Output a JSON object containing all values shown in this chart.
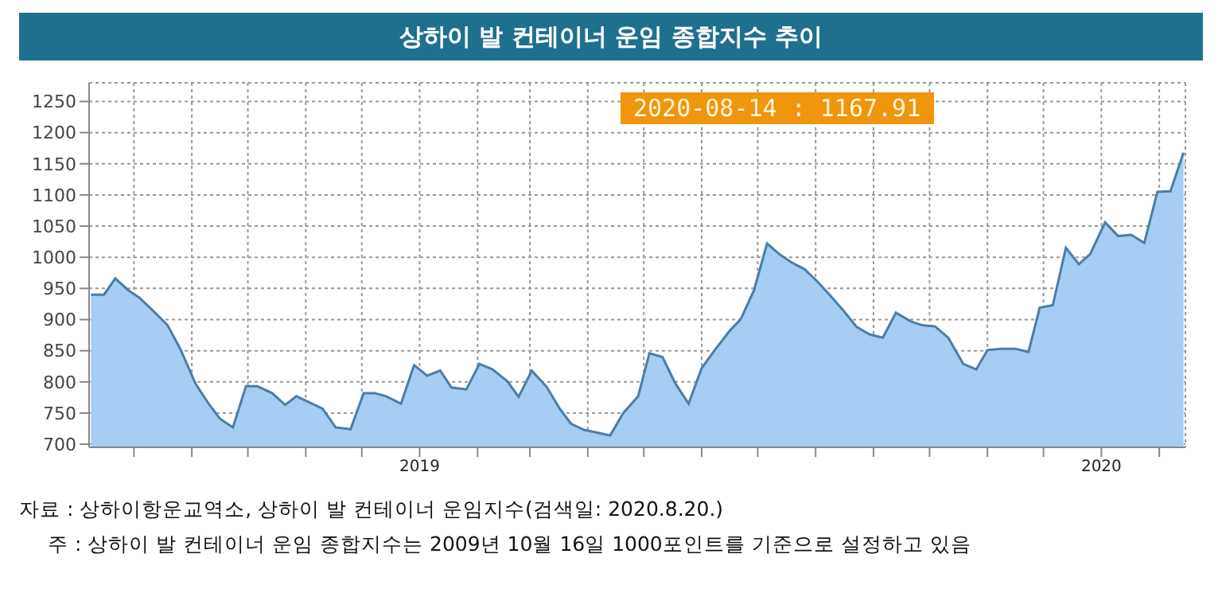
{
  "chart_data": {
    "type": "area",
    "title": "상하이 발 컨테이너 운임 종합지수 추이",
    "x": [
      "2018-07-09",
      "2018-07-16",
      "2018-07-22",
      "2018-07-29",
      "2018-08-04",
      "2018-08-12",
      "2018-08-19",
      "2018-08-26",
      "2018-09-03",
      "2018-09-10",
      "2018-09-16",
      "2018-09-23",
      "2018-09-30",
      "2018-10-06",
      "2018-10-14",
      "2018-10-21",
      "2018-10-27",
      "2018-11-03",
      "2018-11-10",
      "2018-11-17",
      "2018-11-25",
      "2018-12-02",
      "2018-12-08",
      "2018-12-14",
      "2018-12-22",
      "2018-12-29",
      "2019-01-05",
      "2019-01-12",
      "2019-01-18",
      "2019-01-26",
      "2019-02-02",
      "2019-02-09",
      "2019-02-17",
      "2019-02-23",
      "2019-03-02",
      "2019-03-10",
      "2019-03-17",
      "2019-03-23",
      "2019-03-30",
      "2019-04-07",
      "2019-04-13",
      "2019-04-20",
      "2019-04-28",
      "2019-05-04",
      "2019-05-11",
      "2019-05-18",
      "2019-05-25",
      "2019-06-01",
      "2019-06-08",
      "2019-06-16",
      "2019-06-22",
      "2019-06-29",
      "2019-07-06",
      "2019-07-13",
      "2019-07-19",
      "2019-07-26",
      "2019-08-02",
      "2019-08-09",
      "2019-08-16",
      "2019-08-23",
      "2019-08-30",
      "2019-09-06",
      "2019-09-13",
      "2019-09-21",
      "2019-09-27",
      "2019-10-04",
      "2019-10-11",
      "2019-10-19",
      "2019-10-26",
      "2019-11-01",
      "2019-11-08",
      "2019-11-16",
      "2019-11-23",
      "2019-11-29",
      "2019-12-06",
      "2019-12-13",
      "2019-12-20",
      "2019-12-26",
      "2020-01-03",
      "2020-01-10",
      "2020-01-17",
      "2020-01-24",
      "2020-01-31",
      "2020-02-07",
      "2020-02-14"
    ],
    "series": [
      {
        "color": "#a6cdf4",
        "values": [
          940,
          940,
          966,
          947,
          935,
          912,
          891,
          852,
          797,
          765,
          741,
          727,
          793,
          793,
          782,
          763,
          777,
          767,
          757,
          727,
          724,
          782,
          782,
          777,
          765,
          827,
          810,
          818,
          791,
          788,
          829,
          820,
          801,
          776,
          818,
          792,
          757,
          733,
          723,
          718,
          714,
          750,
          777,
          846,
          840,
          797,
          765,
          822,
          851,
          882,
          901,
          947,
          1022,
          1004,
          992,
          981,
          961,
          938,
          914,
          888,
          876,
          871,
          911,
          897,
          891,
          889,
          871,
          829,
          820,
          851,
          853,
          853,
          848,
          919,
          923,
          1015,
          989,
          1005,
          1056,
          1034,
          1036,
          1023,
          1105,
          1106,
          1168
        ]
      }
    ],
    "xlim": [
      "2018-07-08",
      "2020-02-15"
    ],
    "xticks": [
      {
        "value": "2018-08-01",
        "label": null
      },
      {
        "value": "2018-09-01",
        "label": null
      },
      {
        "value": "2018-10-01",
        "label": null
      },
      {
        "value": "2018-11-01",
        "label": null
      },
      {
        "value": "2018-12-01",
        "label": null
      },
      {
        "value": "2019-01-01",
        "label": "2019"
      },
      {
        "value": "2019-02-01",
        "label": null
      },
      {
        "value": "2019-03-01",
        "label": null
      },
      {
        "value": "2019-04-01",
        "label": null
      },
      {
        "value": "2019-05-01",
        "label": null
      },
      {
        "value": "2019-06-01",
        "label": null
      },
      {
        "value": "2019-07-01",
        "label": null
      },
      {
        "value": "2019-08-01",
        "label": null
      },
      {
        "value": "2019-09-01",
        "label": null
      },
      {
        "value": "2019-10-01",
        "label": null
      },
      {
        "value": "2019-11-01",
        "label": null
      },
      {
        "value": "2019-12-01",
        "label": null
      },
      {
        "value": "2020-01-01",
        "label": "2020"
      },
      {
        "value": "2020-02-01",
        "label": null
      }
    ],
    "ylim": [
      695,
      1280
    ],
    "yticks": [
      700,
      750,
      800,
      850,
      900,
      950,
      1000,
      1050,
      1100,
      1150,
      1200,
      1250
    ],
    "grid": true,
    "annotations": [
      "2020-08-14 : 1167.91",
      "자료 : 상하이항운교역소, 상하이 발 컨테이너 운임지수(검색일: 2020.8.20.)",
      "주 : 상하이 발 컨테이너 운임 종합지수는 2009년 10월 16일 1000포인트를 기준으로 설정하고 있음"
    ]
  }
}
